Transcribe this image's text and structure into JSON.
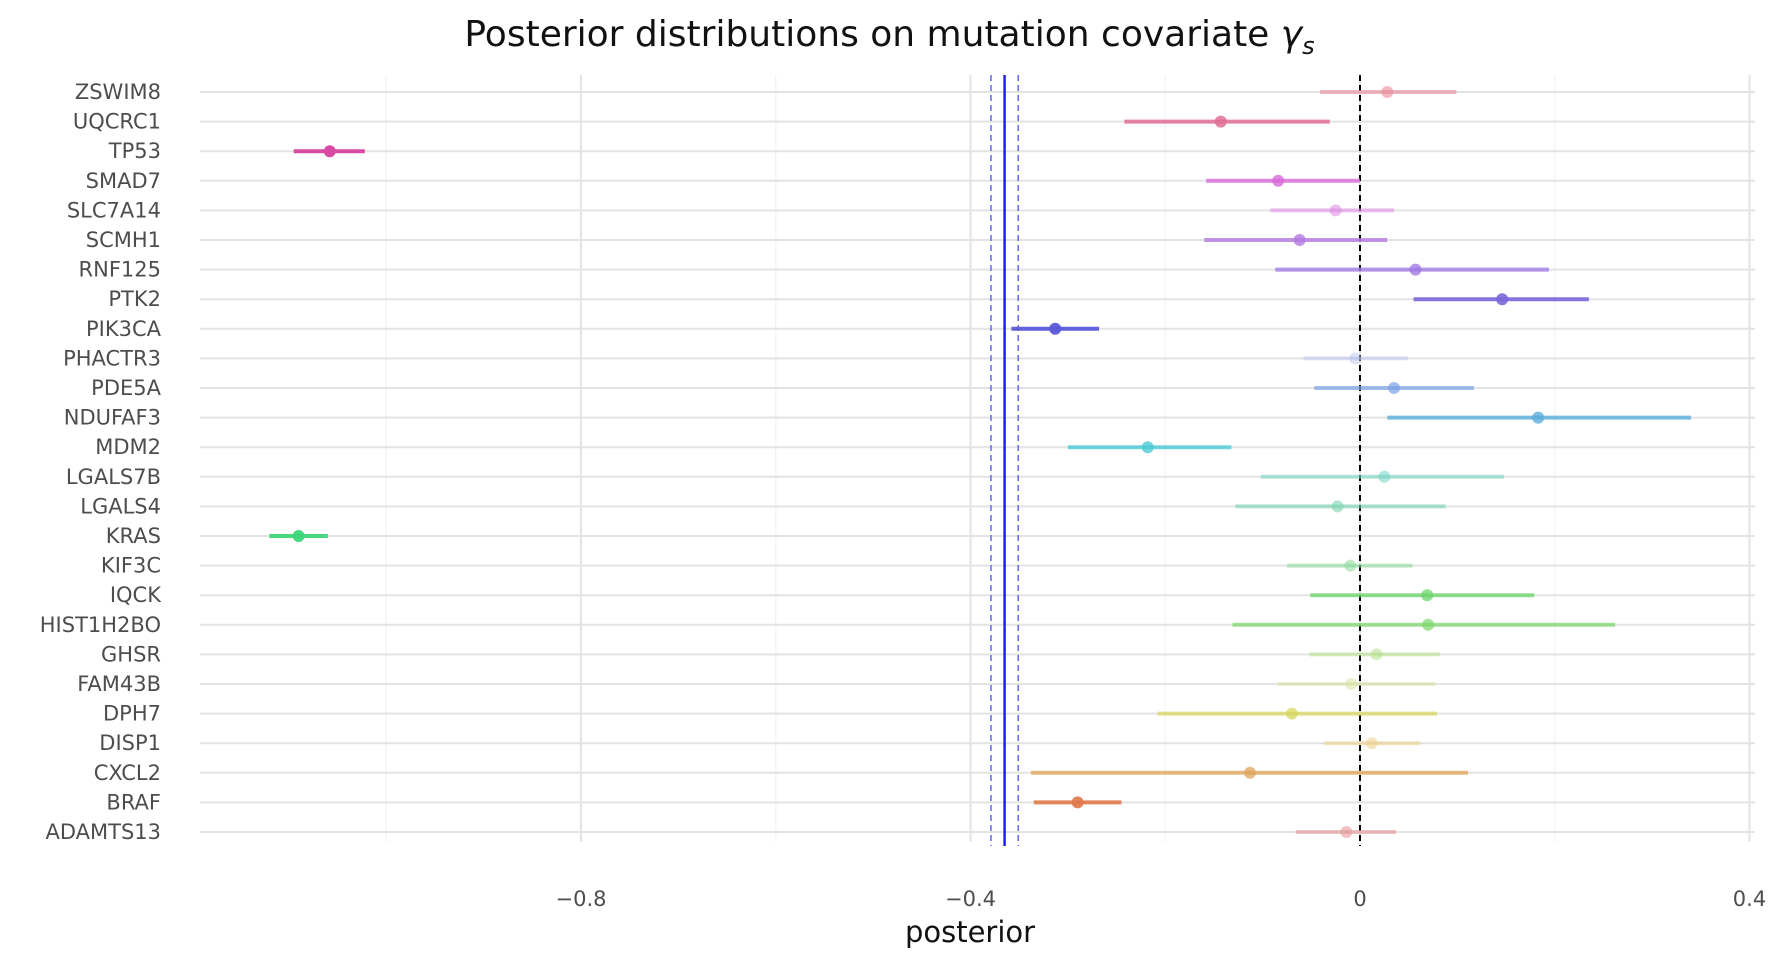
{
  "chart_data": {
    "type": "scatter",
    "title": "Posterior distributions on mutation covariate",
    "title_symbol": "γ",
    "title_subscript": "s",
    "xlabel": "posterior",
    "ylabel": "",
    "xlim": [
      -1.2,
      0.41
    ],
    "x_ticks": [
      -0.8,
      -0.4,
      0,
      0.4
    ],
    "x_tick_labels": [
      "−0.8",
      "−0.4",
      "0",
      "0.4"
    ],
    "grid": true,
    "reference_lines": [
      {
        "name": "zero",
        "x": 0,
        "style": "dashed",
        "color": "#000000"
      },
      {
        "name": "mean",
        "x": -0.365,
        "style": "solid",
        "color": "#1a1ae6"
      },
      {
        "name": "mean-lower",
        "x": -0.379,
        "style": "dashed",
        "color": "#6f6ff0"
      },
      {
        "name": "mean-upper",
        "x": -0.351,
        "style": "dashed",
        "color": "#6f6ff0"
      }
    ],
    "genes": [
      {
        "name": "ZSWIM8",
        "mean": 0.028,
        "low": -0.041,
        "high": 0.099,
        "color": "#e8889a",
        "opacity": 0.6
      },
      {
        "name": "UQCRC1",
        "mean": -0.143,
        "low": -0.242,
        "high": -0.031,
        "color": "#df6d96",
        "opacity": 0.85
      },
      {
        "name": "TP53",
        "mean": -1.058,
        "low": -1.095,
        "high": -1.022,
        "color": "#d94aa5",
        "opacity": 1.0
      },
      {
        "name": "SMAD7",
        "mean": -0.084,
        "low": -0.158,
        "high": 0.0,
        "color": "#d86ad8",
        "opacity": 0.8
      },
      {
        "name": "SLC7A14",
        "mean": -0.025,
        "low": -0.092,
        "high": 0.035,
        "color": "#dd8ae3",
        "opacity": 0.55
      },
      {
        "name": "SCMH1",
        "mean": -0.062,
        "low": -0.16,
        "high": 0.028,
        "color": "#b578e0",
        "opacity": 0.8
      },
      {
        "name": "RNF125",
        "mean": 0.057,
        "low": -0.087,
        "high": 0.194,
        "color": "#a07ae3",
        "opacity": 0.8
      },
      {
        "name": "PTK2",
        "mean": 0.146,
        "low": 0.055,
        "high": 0.235,
        "color": "#7a67d8",
        "opacity": 0.9
      },
      {
        "name": "PIK3CA",
        "mean": -0.313,
        "low": -0.358,
        "high": -0.268,
        "color": "#5a5ad8",
        "opacity": 0.95
      },
      {
        "name": "PHACTR3",
        "mean": -0.005,
        "low": -0.058,
        "high": 0.049,
        "color": "#b3bff0",
        "opacity": 0.45
      },
      {
        "name": "PDE5A",
        "mean": 0.035,
        "low": -0.047,
        "high": 0.117,
        "color": "#7aa3e6",
        "opacity": 0.7
      },
      {
        "name": "NDUFAF3",
        "mean": 0.183,
        "low": 0.028,
        "high": 0.34,
        "color": "#5aaedc",
        "opacity": 0.8
      },
      {
        "name": "MDM2",
        "mean": -0.218,
        "low": -0.3,
        "high": -0.132,
        "color": "#4ccad6",
        "opacity": 0.8
      },
      {
        "name": "LGALS7B",
        "mean": 0.025,
        "low": -0.102,
        "high": 0.148,
        "color": "#7ad6c6",
        "opacity": 0.6
      },
      {
        "name": "LGALS4",
        "mean": -0.023,
        "low": -0.128,
        "high": 0.088,
        "color": "#7ad4b0",
        "opacity": 0.6
      },
      {
        "name": "KRAS",
        "mean": -1.09,
        "low": -1.12,
        "high": -1.06,
        "color": "#3ed67a",
        "opacity": 0.95
      },
      {
        "name": "KIF3C",
        "mean": -0.01,
        "low": -0.075,
        "high": 0.054,
        "color": "#8ad89a",
        "opacity": 0.55
      },
      {
        "name": "IQCK",
        "mean": 0.069,
        "low": -0.051,
        "high": 0.179,
        "color": "#6ad46a",
        "opacity": 0.75
      },
      {
        "name": "HIST1H2BO",
        "mean": 0.07,
        "low": -0.131,
        "high": 0.262,
        "color": "#7ad66a",
        "opacity": 0.7
      },
      {
        "name": "GHSR",
        "mean": 0.017,
        "low": -0.052,
        "high": 0.082,
        "color": "#b4e08a",
        "opacity": 0.55
      },
      {
        "name": "FAM43B",
        "mean": -0.009,
        "low": -0.085,
        "high": 0.077,
        "color": "#d4e2a0",
        "opacity": 0.5
      },
      {
        "name": "DPH7",
        "mean": -0.07,
        "low": -0.208,
        "high": 0.079,
        "color": "#d6d65a",
        "opacity": 0.7
      },
      {
        "name": "DISP1",
        "mean": 0.012,
        "low": -0.037,
        "high": 0.062,
        "color": "#ecd08a",
        "opacity": 0.55
      },
      {
        "name": "CXCL2",
        "mean": -0.113,
        "low": -0.338,
        "high": 0.111,
        "color": "#e0a45a",
        "opacity": 0.75
      },
      {
        "name": "BRAF",
        "mean": -0.29,
        "low": -0.335,
        "high": -0.245,
        "color": "#e0784a",
        "opacity": 0.9
      },
      {
        "name": "ADAMTS13",
        "mean": -0.014,
        "low": -0.066,
        "high": 0.037,
        "color": "#e8989a",
        "opacity": 0.6
      }
    ]
  }
}
